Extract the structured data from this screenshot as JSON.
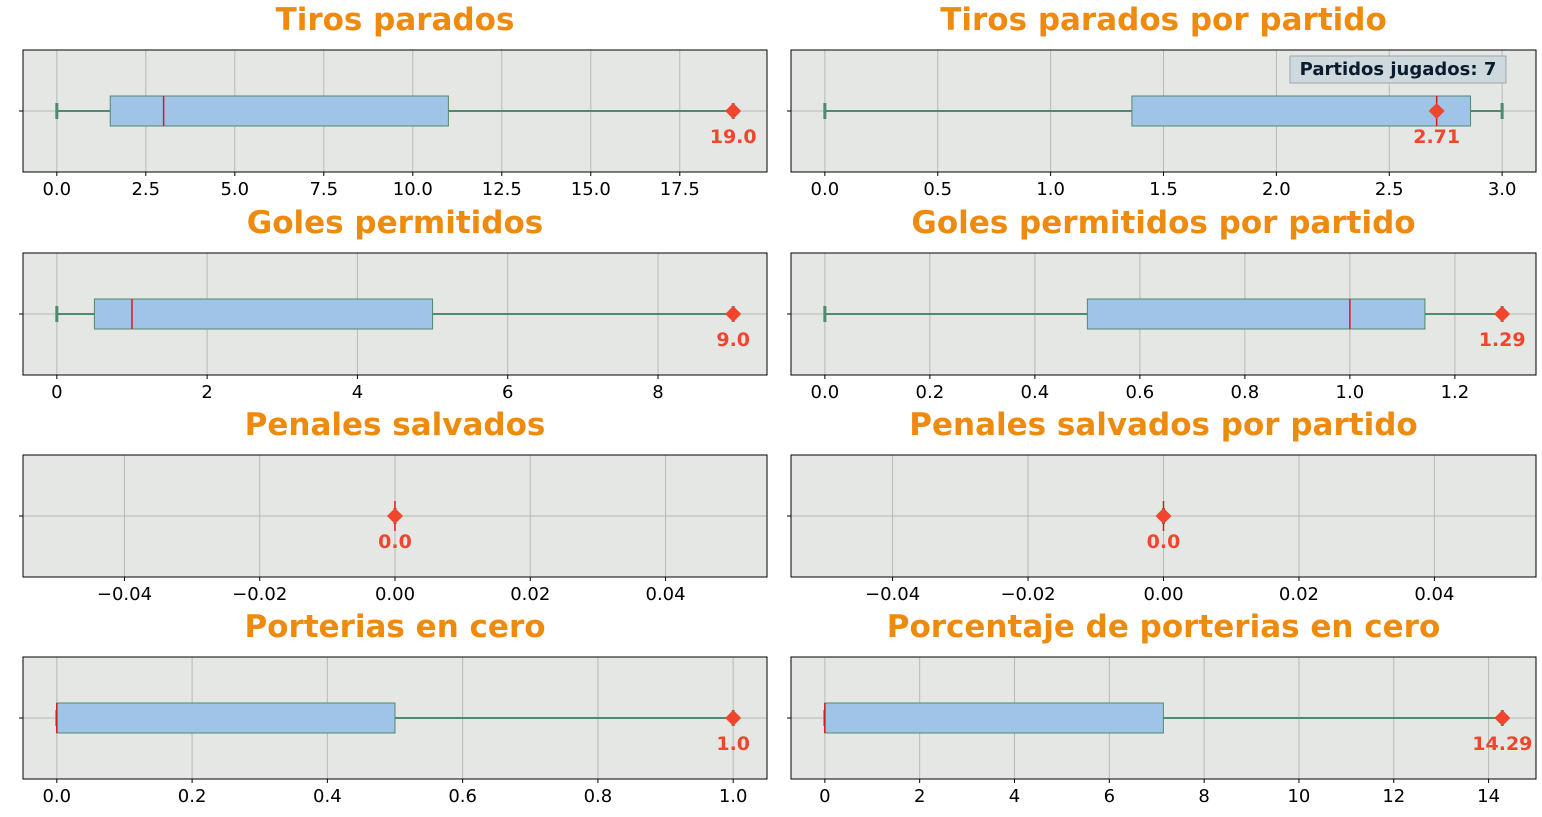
{
  "colors": {
    "title": "#EE8A0E",
    "plot_bg": "#E5E7E4",
    "grid": "#B8BAB7",
    "box_fill": "#A0C4E8",
    "box_edge": "#4E8A6C",
    "whisker": "#4E8A6C",
    "median": "#E0141E",
    "marker": "#F2452E",
    "annotation_text": "#F2452E",
    "tick_text": "#000000",
    "badge_fill": "#CDD9DC",
    "badge_text": "#0A1B2E"
  },
  "chart_data": [
    {
      "type": "boxplot",
      "title": "Tiros parados",
      "xlim": [
        -0.95,
        19.95
      ],
      "ticks": [
        0,
        2.5,
        5,
        7.5,
        10,
        12.5,
        15,
        17.5
      ],
      "tick_labels": [
        "0.0",
        "2.5",
        "5.0",
        "7.5",
        "10.0",
        "12.5",
        "15.0",
        "17.5"
      ],
      "box": {
        "min": 0,
        "q1": 1.5,
        "median": 3,
        "q3": 11,
        "max": 19
      },
      "player_value": 19,
      "player_label": "19.0"
    },
    {
      "type": "boxplot",
      "title": "Tiros parados por partido",
      "xlim": [
        -0.15,
        3.15
      ],
      "ticks": [
        0,
        0.5,
        1,
        1.5,
        2,
        2.5,
        3
      ],
      "tick_labels": [
        "0.0",
        "0.5",
        "1.0",
        "1.5",
        "2.0",
        "2.5",
        "3.0"
      ],
      "box": {
        "min": 0,
        "q1": 1.36,
        "median": 2.71,
        "q3": 2.86,
        "max": 3.0
      },
      "player_value": 2.71,
      "player_label": "2.71",
      "badge": "Partidos jugados: 7"
    },
    {
      "type": "boxplot",
      "title": "Goles permitidos",
      "xlim": [
        -0.45,
        9.45
      ],
      "ticks": [
        0,
        2,
        4,
        6,
        8
      ],
      "tick_labels": [
        "0",
        "2",
        "4",
        "6",
        "8"
      ],
      "box": {
        "min": 0,
        "q1": 0.5,
        "median": 1,
        "q3": 5,
        "max": 9
      },
      "player_value": 9,
      "player_label": "9.0"
    },
    {
      "type": "boxplot",
      "title": "Goles permitidos por partido",
      "xlim": [
        -0.0645,
        1.3545
      ],
      "ticks": [
        0,
        0.2,
        0.4,
        0.6,
        0.8,
        1.0,
        1.2
      ],
      "tick_labels": [
        "0.0",
        "0.2",
        "0.4",
        "0.6",
        "0.8",
        "1.0",
        "1.2"
      ],
      "box": {
        "min": 0,
        "q1": 0.5,
        "median": 1.0,
        "q3": 1.143,
        "max": 1.29
      },
      "player_value": 1.29,
      "player_label": "1.29"
    },
    {
      "type": "boxplot",
      "title": "Penales salvados",
      "xlim": [
        -0.055,
        0.055
      ],
      "ticks": [
        -0.04,
        -0.02,
        0,
        0.02,
        0.04
      ],
      "tick_labels": [
        "−0.04",
        "−0.02",
        "0.00",
        "0.02",
        "0.04"
      ],
      "box": {
        "min": 0,
        "q1": 0,
        "median": 0,
        "q3": 0,
        "max": 0
      },
      "player_value": 0,
      "player_label": "0.0"
    },
    {
      "type": "boxplot",
      "title": "Penales salvados por partido",
      "xlim": [
        -0.055,
        0.055
      ],
      "ticks": [
        -0.04,
        -0.02,
        0,
        0.02,
        0.04
      ],
      "tick_labels": [
        "−0.04",
        "−0.02",
        "0.00",
        "0.02",
        "0.04"
      ],
      "box": {
        "min": 0,
        "q1": 0,
        "median": 0,
        "q3": 0,
        "max": 0
      },
      "player_value": 0,
      "player_label": "0.0"
    },
    {
      "type": "boxplot",
      "title": "Porterias en cero",
      "xlim": [
        -0.05,
        1.05
      ],
      "ticks": [
        0,
        0.2,
        0.4,
        0.6,
        0.8,
        1.0
      ],
      "tick_labels": [
        "0.0",
        "0.2",
        "0.4",
        "0.6",
        "0.8",
        "1.0"
      ],
      "box": {
        "min": 0,
        "q1": 0,
        "median": 0,
        "q3": 0.5,
        "max": 1.0
      },
      "player_value": 1.0,
      "player_label": "1.0"
    },
    {
      "type": "boxplot",
      "title": "Porcentaje de porterias en cero",
      "xlim": [
        -0.714,
        15.0
      ],
      "ticks": [
        0,
        2,
        4,
        6,
        8,
        10,
        12,
        14
      ],
      "tick_labels": [
        "0",
        "2",
        "4",
        "6",
        "8",
        "10",
        "12",
        "14"
      ],
      "box": {
        "min": 0,
        "q1": 0,
        "median": 0,
        "q3": 7.14,
        "max": 14.29
      },
      "player_value": 14.29,
      "player_label": "14.29"
    }
  ]
}
